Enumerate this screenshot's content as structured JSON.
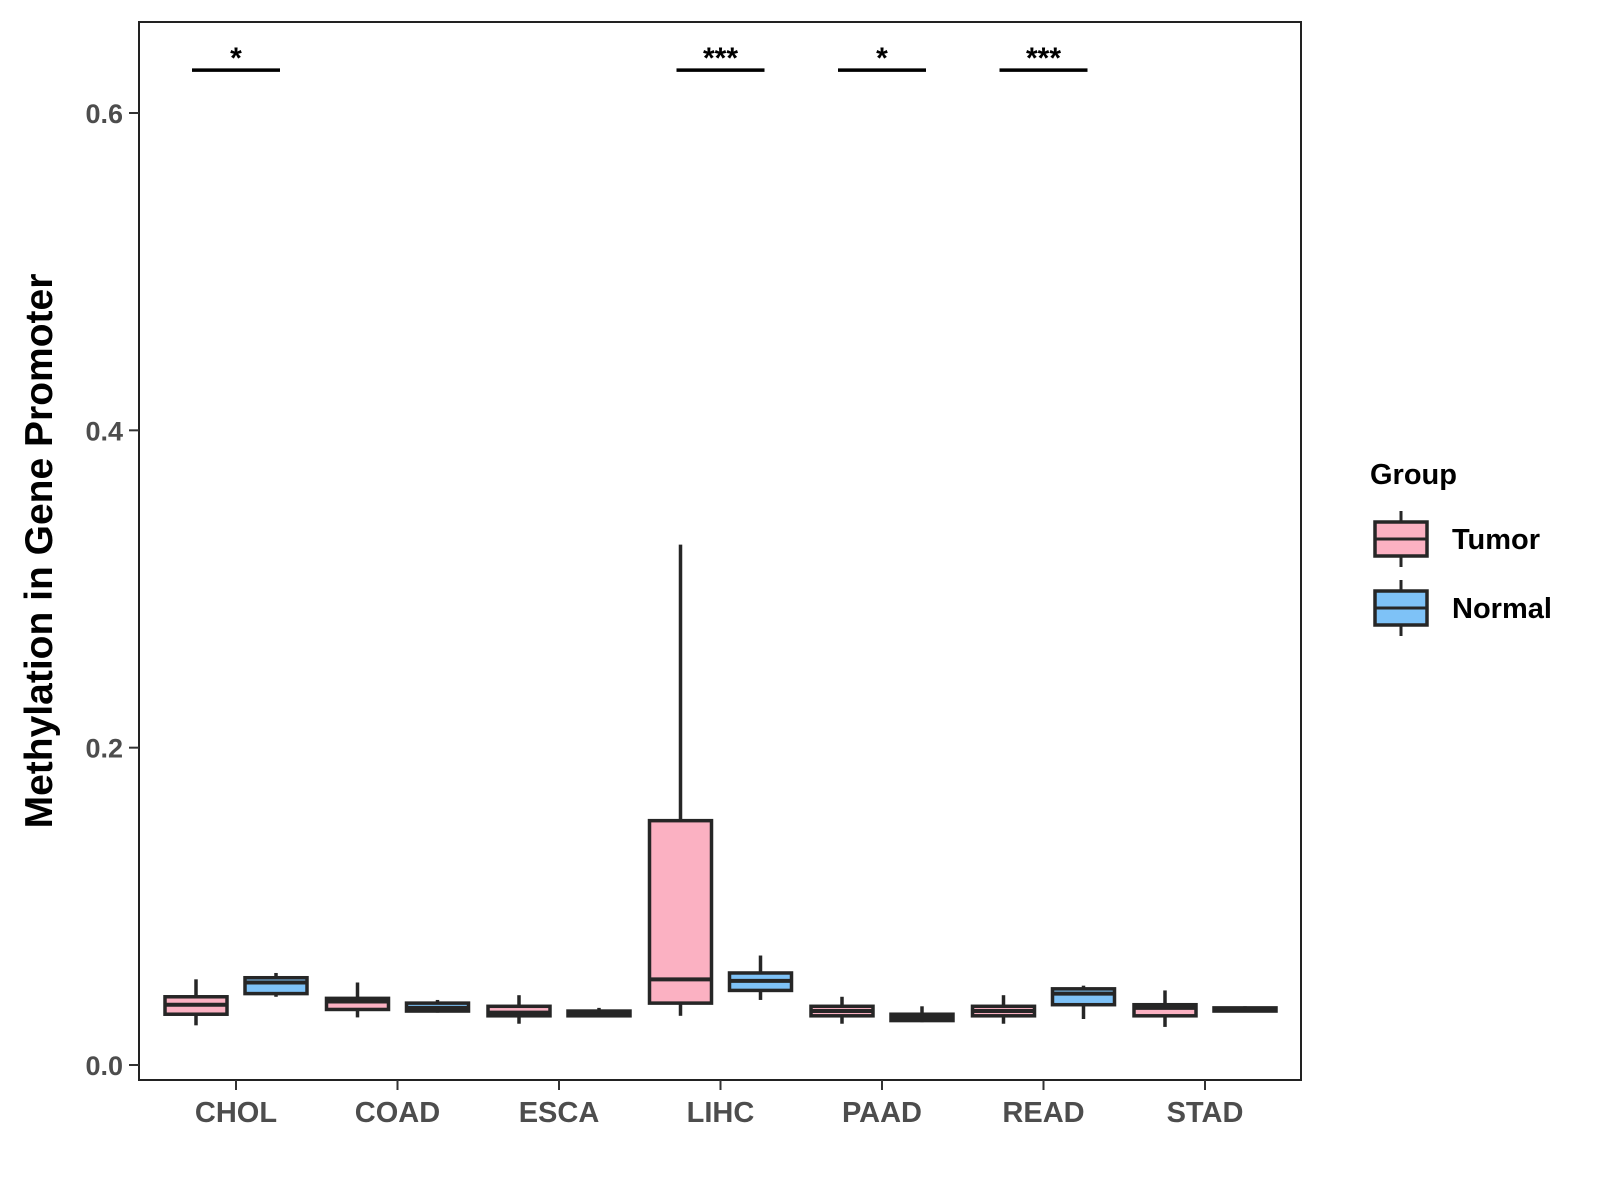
{
  "chart_data": {
    "type": "box",
    "title": "",
    "xlabel": "",
    "ylabel": "Methylation in Gene Promoter",
    "ylim": [
      -0.008,
      0.656
    ],
    "y_ticks": [
      "0.0",
      "0.2",
      "0.4",
      "0.6"
    ],
    "categories": [
      "CHOL",
      "COAD",
      "ESCA",
      "LIHC",
      "PAAD",
      "READ",
      "STAD"
    ],
    "legend": {
      "title": "Group",
      "position": "right",
      "items": [
        {
          "label": "Tumor",
          "color": "#FBB1C2"
        },
        {
          "label": "Normal",
          "color": "#7EC2F7"
        }
      ]
    },
    "series": [
      {
        "name": "Tumor",
        "color": "#FBB1C2",
        "boxes": [
          {
            "category": "CHOL",
            "min": 0.025,
            "q1": 0.032,
            "median": 0.038,
            "q3": 0.043,
            "max": 0.054
          },
          {
            "category": "COAD",
            "min": 0.03,
            "q1": 0.035,
            "median": 0.04,
            "q3": 0.042,
            "max": 0.052
          },
          {
            "category": "ESCA",
            "min": 0.026,
            "q1": 0.031,
            "median": 0.033,
            "q3": 0.037,
            "max": 0.044
          },
          {
            "category": "LIHC",
            "min": 0.031,
            "q1": 0.039,
            "median": 0.054,
            "q3": 0.154,
            "max": 0.328
          },
          {
            "category": "PAAD",
            "min": 0.026,
            "q1": 0.031,
            "median": 0.034,
            "q3": 0.037,
            "max": 0.043
          },
          {
            "category": "READ",
            "min": 0.026,
            "q1": 0.031,
            "median": 0.034,
            "q3": 0.037,
            "max": 0.044
          },
          {
            "category": "STAD",
            "min": 0.024,
            "q1": 0.031,
            "median": 0.036,
            "q3": 0.038,
            "max": 0.047
          }
        ]
      },
      {
        "name": "Normal",
        "color": "#7EC2F7",
        "boxes": [
          {
            "category": "CHOL",
            "min": 0.043,
            "q1": 0.045,
            "median": 0.052,
            "q3": 0.055,
            "max": 0.058
          },
          {
            "category": "COAD",
            "min": 0.033,
            "q1": 0.034,
            "median": 0.036,
            "q3": 0.039,
            "max": 0.041
          },
          {
            "category": "ESCA",
            "min": 0.03,
            "q1": 0.031,
            "median": 0.032,
            "q3": 0.034,
            "max": 0.036
          },
          {
            "category": "LIHC",
            "min": 0.041,
            "q1": 0.047,
            "median": 0.053,
            "q3": 0.058,
            "max": 0.069
          },
          {
            "category": "PAAD",
            "min": 0.027,
            "q1": 0.028,
            "median": 0.03,
            "q3": 0.032,
            "max": 0.037
          },
          {
            "category": "READ",
            "min": 0.029,
            "q1": 0.038,
            "median": 0.045,
            "q3": 0.048,
            "max": 0.05
          },
          {
            "category": "STAD",
            "min": 0.034,
            "q1": 0.034,
            "median": 0.035,
            "q3": 0.036,
            "max": 0.037
          }
        ]
      }
    ],
    "significance": [
      {
        "category": "CHOL",
        "label": "*",
        "y": 0.627
      },
      {
        "category": "LIHC",
        "label": "***",
        "y": 0.627
      },
      {
        "category": "PAAD",
        "label": "*",
        "y": 0.627
      },
      {
        "category": "READ",
        "label": "***",
        "y": 0.627
      }
    ],
    "grid": false
  }
}
